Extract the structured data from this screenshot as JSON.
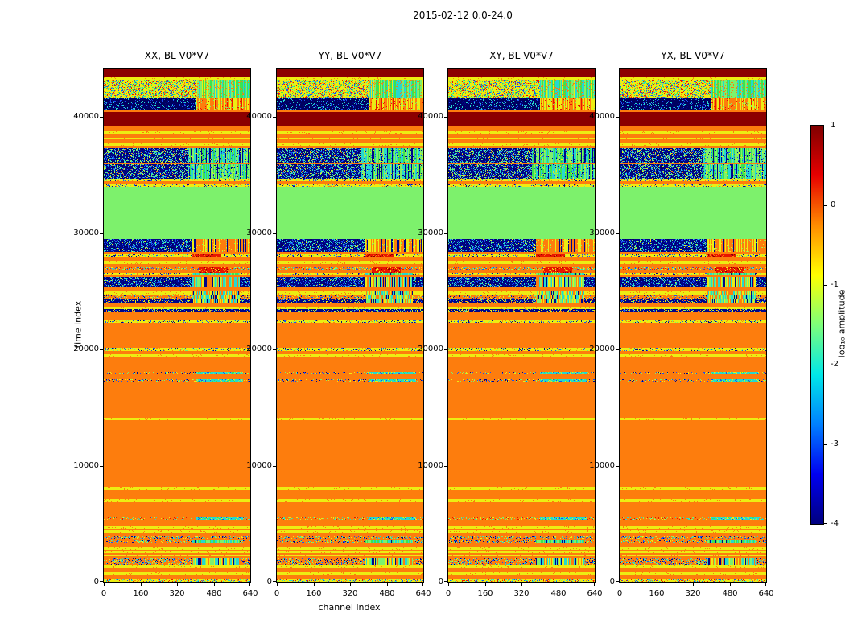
{
  "figure": {
    "title": "2015-02-12 0.0-24.0",
    "xlabel": "channel index",
    "ylabel": "time index"
  },
  "panels": [
    {
      "title": "XX, BL V0*V7"
    },
    {
      "title": "YY, BL V0*V7"
    },
    {
      "title": "XY, BL V0*V7"
    },
    {
      "title": "YX, BL V0*V7"
    }
  ],
  "colorbar": {
    "label": "log₁₀ amplitude",
    "ticks": [
      1,
      0,
      -1,
      -2,
      -3,
      -4
    ],
    "vmax": 1,
    "vmin": -4,
    "gradient": [
      "#7f0000",
      "#e60000",
      "#ff8c00",
      "#ffff00",
      "#7dff7a",
      "#00e8e8",
      "#0080ff",
      "#0000f0",
      "#00007f"
    ]
  },
  "chart_data": {
    "type": "heatmap",
    "title": "2015-02-12 0.0-24.0",
    "subplot_titles": [
      "XX, BL V0*V7",
      "YY, BL V0*V7",
      "XY, BL V0*V7",
      "YX, BL V0*V7"
    ],
    "panels_share_pattern": true,
    "xlabel": "channel index",
    "ylabel": "time index",
    "x_ticks": [
      0,
      160,
      320,
      480,
      640
    ],
    "y_ticks": [
      0,
      10000,
      20000,
      30000,
      40000
    ],
    "x_range": [
      0,
      640
    ],
    "y_range": [
      0,
      44100
    ],
    "colormap": "jet",
    "value_label": "log₁₀ amplitude",
    "value_range": [
      -4,
      1
    ],
    "background_style": "orange",
    "palette": {
      "orange": "#fd7d0d",
      "yellow": "#eded12",
      "darkred": "#8c0000",
      "red": "#e81500",
      "green": "#7df16c",
      "lime": "#3ce44e",
      "cyan": "#26d8cf",
      "blue": "#1a52f0",
      "darkblue": "#000589",
      "navy": "#000060"
    },
    "bands_format": [
      "time_start",
      "time_end",
      "style",
      "right_patch_optional"
    ],
    "patch_channels": {
      "cyan_patch": [
        400,
        610
      ],
      "col_mix": [
        385,
        595
      ],
      "col_green": [
        385,
        595
      ],
      "red_patch": [
        415,
        540
      ],
      "red_patch2": [
        385,
        510
      ],
      "col_warm": [
        385,
        640
      ],
      "col_green2": [
        365,
        640
      ],
      "warm_patch": [
        400,
        640
      ],
      "cyan_patch2": [
        400,
        640
      ]
    },
    "bands": [
      [
        0,
        280,
        "warm_mix"
      ],
      [
        650,
        820,
        "yellow"
      ],
      [
        1250,
        1430,
        "yellow"
      ],
      [
        1430,
        2050,
        "cool_speckle",
        "col_mix"
      ],
      [
        2200,
        2360,
        "yellow"
      ],
      [
        2500,
        2660,
        "yellow"
      ],
      [
        2800,
        2960,
        "yellow"
      ],
      [
        3350,
        3600,
        "cool_speckle",
        "col_green"
      ],
      [
        3760,
        3960,
        "cool_speckle"
      ],
      [
        4200,
        4400,
        "yellow"
      ],
      [
        4560,
        4760,
        "yellow"
      ],
      [
        5300,
        5620,
        "warm_speckle",
        "cyan_patch"
      ],
      [
        6900,
        7160,
        "yellow"
      ],
      [
        7900,
        8160,
        "yellow"
      ],
      [
        13900,
        14120,
        "yellow"
      ],
      [
        17200,
        17460,
        "thin_speckle",
        "cyan_patch"
      ],
      [
        17860,
        18070,
        "thin_speckle",
        "cyan_patch"
      ],
      [
        19400,
        19620,
        "yellow"
      ],
      [
        19900,
        20160,
        "yellow_speckle"
      ],
      [
        22300,
        22560,
        "yellow_speckle"
      ],
      [
        23250,
        23460,
        "dark_speckle"
      ],
      [
        23460,
        23670,
        "yellow"
      ],
      [
        24010,
        24290,
        "dark_speckle",
        "col_mix"
      ],
      [
        24290,
        24700,
        "thin_speckle",
        "col_mix"
      ],
      [
        24700,
        25050,
        "yellow",
        "col_mix"
      ],
      [
        25400,
        26230,
        "blue_speckle",
        "col_mix"
      ],
      [
        26350,
        26600,
        "yellow_speckle",
        "col_green"
      ],
      [
        26600,
        26850,
        "orange",
        "red_patch"
      ],
      [
        26850,
        27100,
        "multicolor",
        "red_patch"
      ],
      [
        27350,
        27610,
        "yellow"
      ],
      [
        27950,
        28200,
        "yellow_speckle",
        "red_patch2"
      ],
      [
        28400,
        29500,
        "blue_speckle",
        "col_warm"
      ],
      [
        29500,
        33980,
        "green"
      ],
      [
        33980,
        34250,
        "yellow_speckle"
      ],
      [
        34450,
        34670,
        "yellow_speckle"
      ],
      [
        34670,
        35900,
        "noise_cool",
        "col_green2"
      ],
      [
        35900,
        36100,
        "orange"
      ],
      [
        36100,
        37300,
        "noise_cool",
        "col_green2"
      ],
      [
        37550,
        37750,
        "yellow"
      ],
      [
        38050,
        38250,
        "yellow"
      ],
      [
        38550,
        38750,
        "yellow"
      ],
      [
        39240,
        40420,
        "darkred"
      ],
      [
        40550,
        41590,
        "blue_dark",
        "warm_patch"
      ],
      [
        41590,
        43180,
        "noise_warm",
        "cyan_patch2"
      ],
      [
        43180,
        43390,
        "yellow"
      ],
      [
        43390,
        44100,
        "darkred"
      ]
    ]
  }
}
